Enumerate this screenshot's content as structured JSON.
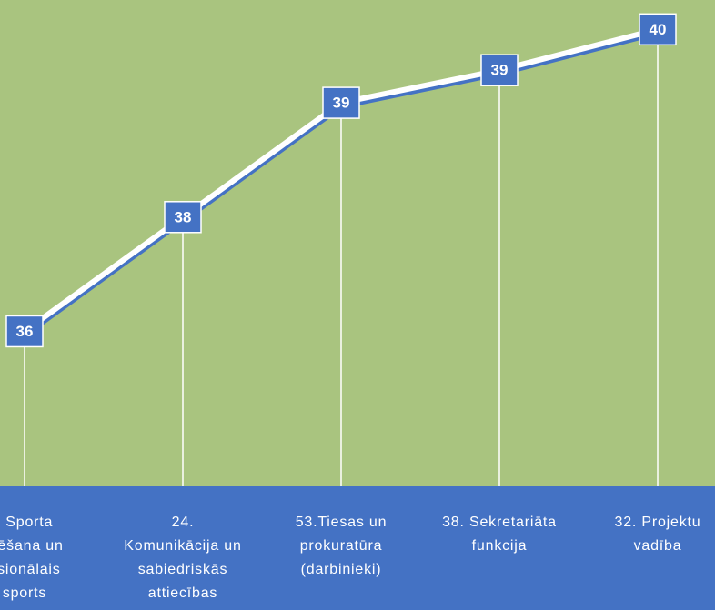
{
  "chart_data": {
    "type": "line",
    "categories": [
      [
        ". Sporta",
        "izēšana un",
        "esionālais",
        "sports"
      ],
      [
        "24.",
        "Komunikācija un",
        "sabiedriskās",
        "attiecības"
      ],
      [
        "53.Tiesas un",
        "prokuratūra",
        "(darbinieki)"
      ],
      [
        "38. Sekretariāta",
        "funkcija"
      ],
      [
        "32. Projektu",
        "vadība"
      ]
    ],
    "values": [
      36.2,
      37.6,
      39.0,
      39.4,
      39.9
    ],
    "value_labels": [
      "36",
      "38",
      "39",
      "39",
      "40"
    ],
    "color": "#ffffff",
    "label_color": "#4472c4",
    "ylim": [
      34.3,
      40.26
    ]
  }
}
